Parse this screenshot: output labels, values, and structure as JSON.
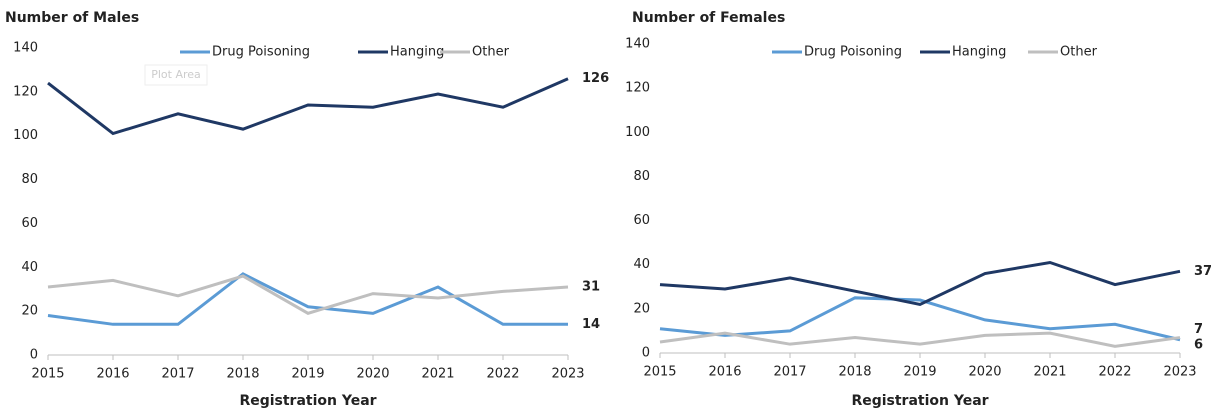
{
  "chart_data": [
    {
      "type": "line",
      "title": "Number of Males",
      "x_label": "Registration Year",
      "annotation": "Plot Area",
      "x": [
        2015,
        2016,
        2017,
        2018,
        2019,
        2020,
        2021,
        2022,
        2023
      ],
      "xlim": [
        2015,
        2023
      ],
      "xticks": [
        2015,
        2016,
        2017,
        2018,
        2019,
        2020,
        2021,
        2022,
        2023
      ],
      "ylim": [
        0,
        140
      ],
      "yticks": [
        0,
        20,
        40,
        60,
        80,
        100,
        120,
        140
      ],
      "series": [
        {
          "name": "Drug Poisoning",
          "color": "#5b9bd5",
          "values": [
            18,
            14,
            14,
            37,
            22,
            19,
            31,
            14,
            14
          ]
        },
        {
          "name": "Hanging",
          "color": "#1f3864",
          "values": [
            124,
            101,
            110,
            103,
            114,
            113,
            119,
            113,
            126
          ]
        },
        {
          "name": "Other",
          "color": "#bfbfbf",
          "values": [
            31,
            34,
            27,
            36,
            19,
            28,
            26,
            29,
            31
          ]
        }
      ]
    },
    {
      "type": "line",
      "title": "Number of Females",
      "x_label": "Registration Year",
      "x": [
        2015,
        2016,
        2017,
        2018,
        2019,
        2020,
        2021,
        2022,
        2023
      ],
      "xlim": [
        2015,
        2023
      ],
      "xticks": [
        2015,
        2016,
        2017,
        2018,
        2019,
        2020,
        2021,
        2022,
        2023
      ],
      "ylim": [
        0,
        140
      ],
      "yticks": [
        0,
        20,
        40,
        60,
        80,
        100,
        120,
        140
      ],
      "series": [
        {
          "name": "Drug Poisoning",
          "color": "#5b9bd5",
          "values": [
            11,
            8,
            10,
            25,
            24,
            15,
            11,
            13,
            6
          ]
        },
        {
          "name": "Hanging",
          "color": "#1f3864",
          "values": [
            31,
            29,
            34,
            28,
            22,
            36,
            41,
            31,
            37
          ]
        },
        {
          "name": "Other",
          "color": "#bfbfbf",
          "values": [
            5,
            9,
            4,
            7,
            4,
            8,
            9,
            3,
            7
          ]
        }
      ]
    }
  ]
}
